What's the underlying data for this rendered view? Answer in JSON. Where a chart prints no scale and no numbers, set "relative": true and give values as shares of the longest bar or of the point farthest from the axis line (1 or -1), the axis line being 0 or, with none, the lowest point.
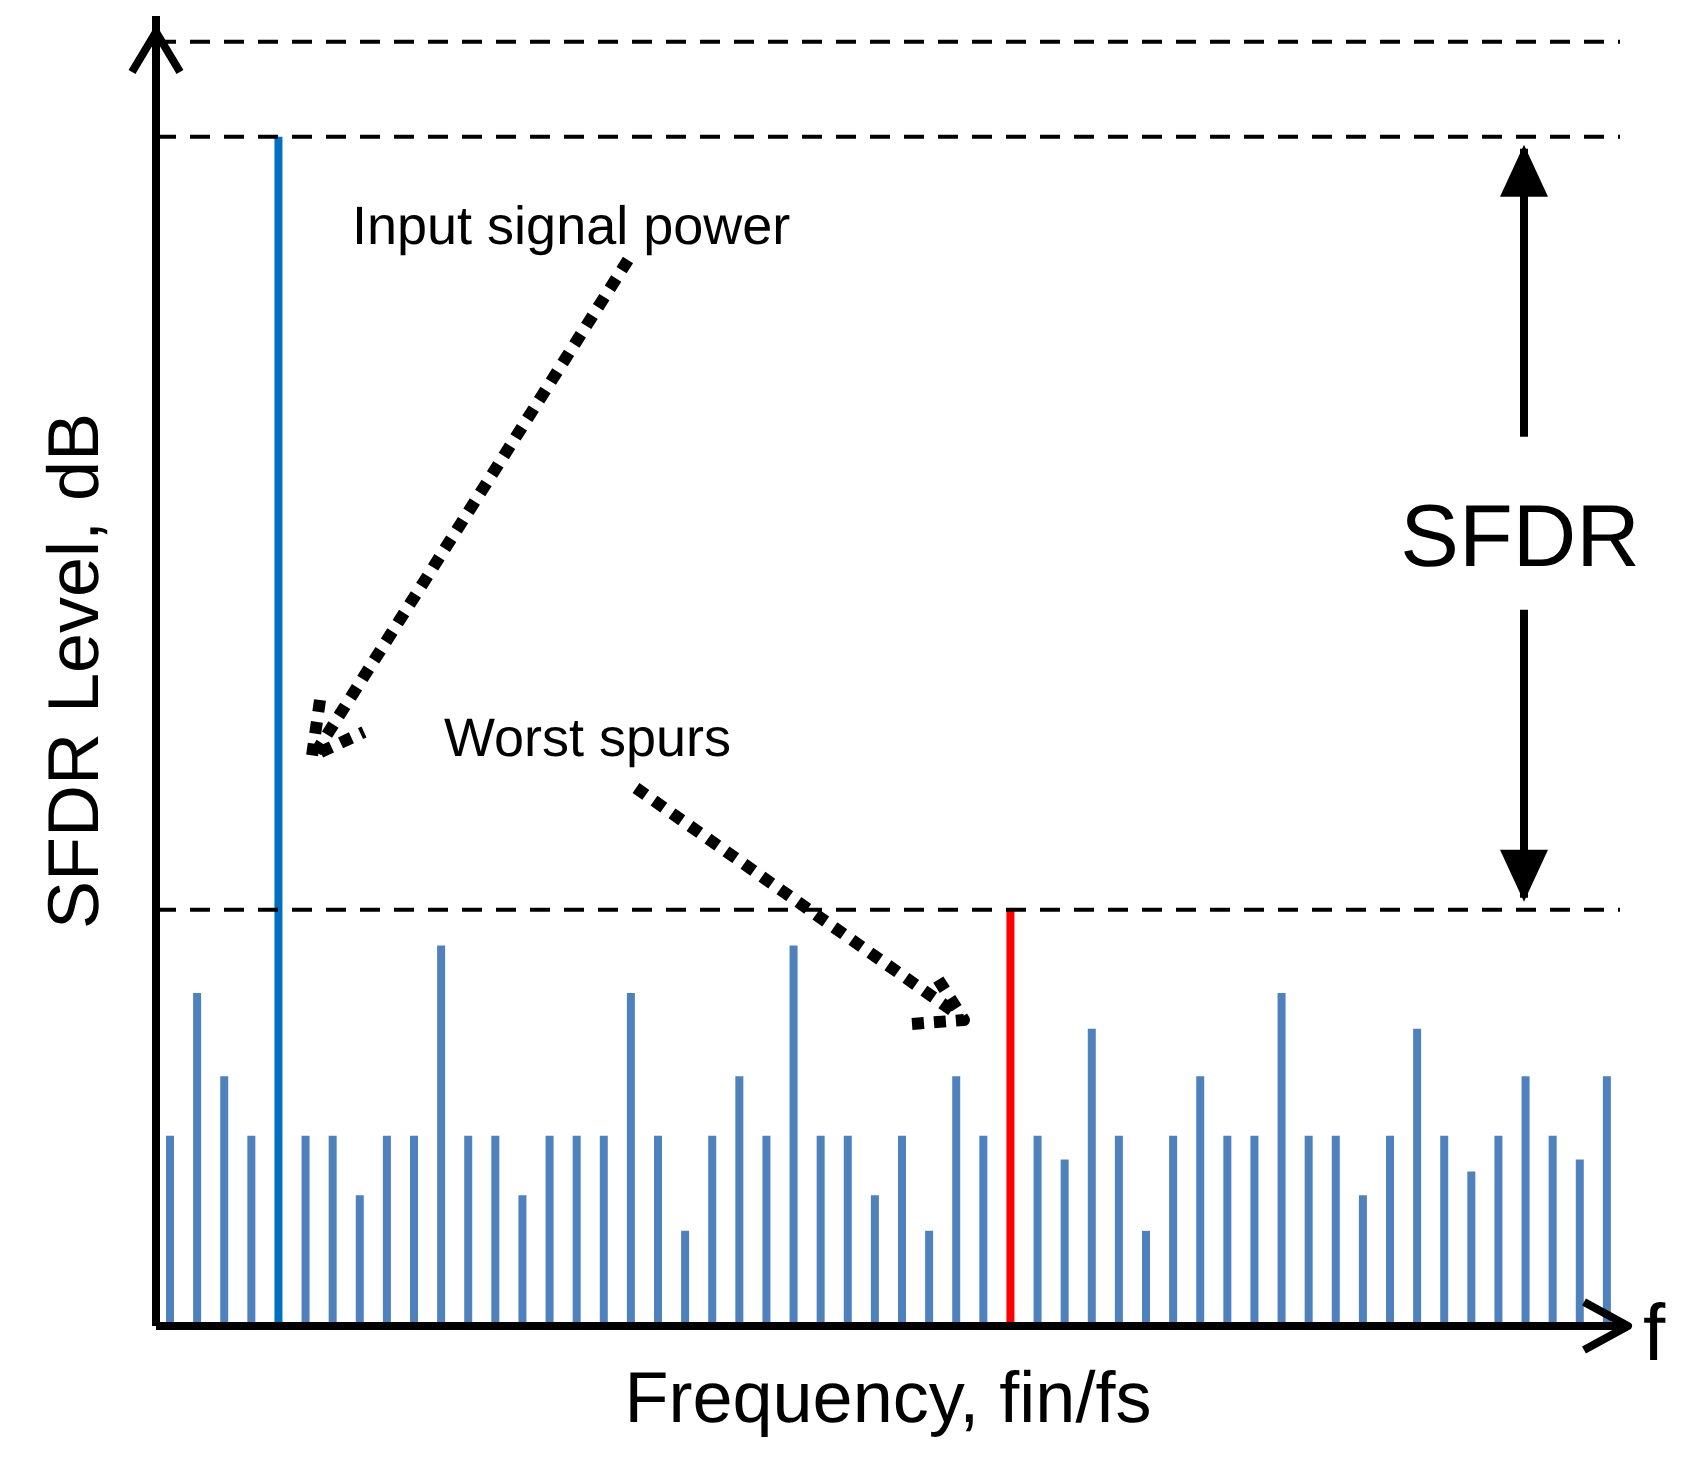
{
  "chart_data": {
    "type": "bar",
    "relative": true,
    "xlabel": "Frequency, fin/fs",
    "ylabel": "SFDR Level, dB",
    "categories": [
      null,
      null,
      null,
      null,
      null,
      null,
      null,
      null,
      null,
      null,
      null,
      null,
      null,
      null,
      null,
      null,
      null,
      null,
      null,
      null,
      null,
      null,
      null,
      null,
      null,
      null,
      null,
      null,
      null,
      null,
      null,
      null,
      null,
      null,
      null,
      null,
      null,
      null,
      null,
      null,
      null,
      null,
      null,
      null,
      null,
      null,
      null,
      null,
      null,
      null,
      null,
      null,
      null,
      null
    ],
    "values": [
      0.16,
      0.28,
      0.21,
      0.16,
      1,
      0.16,
      0.16,
      0.11,
      0.16,
      0.16,
      0.32,
      0.16,
      0.16,
      0.11,
      0.16,
      0.16,
      0.16,
      0.28,
      0.16,
      0.08,
      0.16,
      0.21,
      0.16,
      0.32,
      0.16,
      0.16,
      0.11,
      0.16,
      0.08,
      0.21,
      0.16,
      0.35,
      0.16,
      0.14,
      0.25,
      0.16,
      0.08,
      0.16,
      0.21,
      0.16,
      0.16,
      0.28,
      0.16,
      0.16,
      0.11,
      0.16,
      0.25,
      0.16,
      0.13,
      0.16,
      0.21,
      0.16,
      0.14,
      0.21
    ],
    "colors": [
      "#4f81bd",
      "#4f81bd",
      "#4f81bd",
      "#4f81bd",
      "#0070c0",
      "#4f81bd",
      "#4f81bd",
      "#4f81bd",
      "#4f81bd",
      "#4f81bd",
      "#4f81bd",
      "#4f81bd",
      "#4f81bd",
      "#4f81bd",
      "#4f81bd",
      "#4f81bd",
      "#4f81bd",
      "#4f81bd",
      "#4f81bd",
      "#4f81bd",
      "#4f81bd",
      "#4f81bd",
      "#4f81bd",
      "#4f81bd",
      "#4f81bd",
      "#4f81bd",
      "#4f81bd",
      "#4f81bd",
      "#4f81bd",
      "#4f81bd",
      "#4f81bd",
      "#ff0000",
      "#4f81bd",
      "#4f81bd",
      "#4f81bd",
      "#4f81bd",
      "#4f81bd",
      "#4f81bd",
      "#4f81bd",
      "#4f81bd",
      "#4f81bd",
      "#4f81bd",
      "#4f81bd",
      "#4f81bd",
      "#4f81bd",
      "#4f81bd",
      "#4f81bd",
      "#4f81bd",
      "#4f81bd",
      "#4f81bd",
      "#4f81bd",
      "#4f81bd",
      "#4f81bd",
      "#4f81bd"
    ],
    "ref_lines": [
      {
        "axis": "y",
        "value": 1.08,
        "color": "#000000",
        "line_style": "dashed"
      },
      {
        "axis": "y",
        "value": 1,
        "color": "#000000",
        "line_style": "dashed"
      },
      {
        "axis": "y",
        "value": 0.35,
        "color": "#000000",
        "line_style": "dashed"
      }
    ],
    "annotations": [
      "Input signal power",
      "Worst spurs",
      "SFDR",
      "f"
    ]
  }
}
